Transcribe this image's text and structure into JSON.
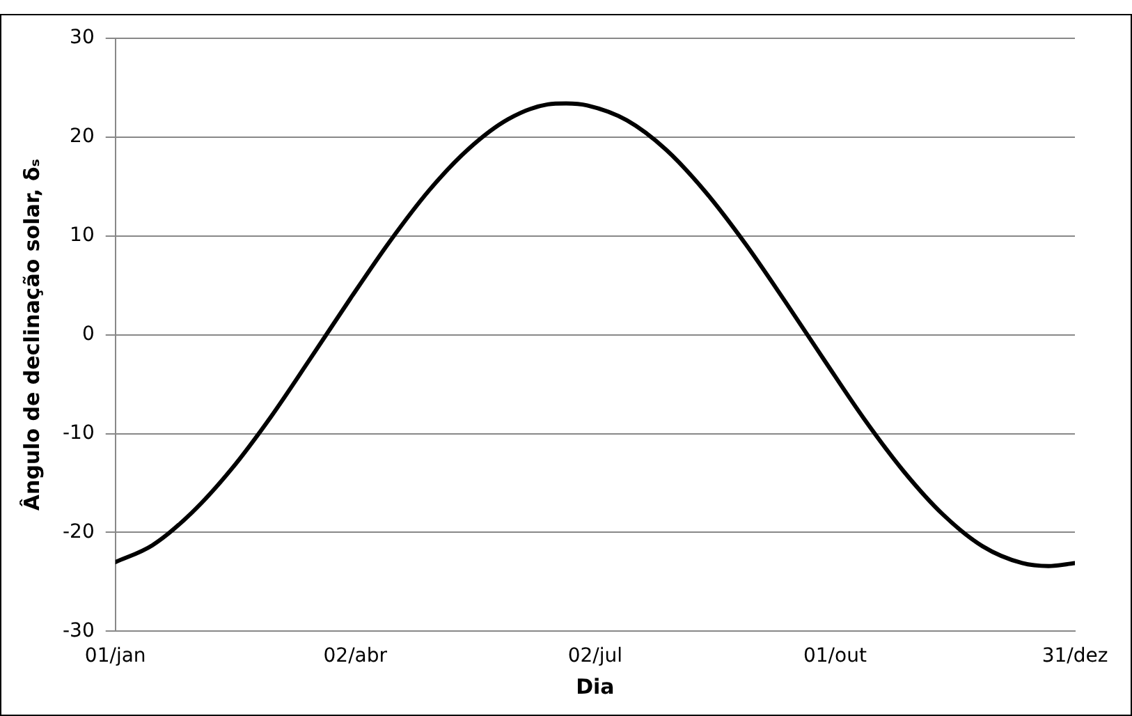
{
  "chart_data": {
    "type": "line",
    "xlabel": "Dia",
    "ylabel": "Ângulo de declinação solar, δₛ",
    "x": [
      "--01-01",
      "--01-15",
      "--01-30",
      "--02-14",
      "--03-01",
      "--03-16",
      "--03-31",
      "--04-15",
      "--04-30",
      "--05-15",
      "--05-30",
      "--06-14",
      "--06-21",
      "--06-29",
      "--07-14",
      "--07-29",
      "--08-13",
      "--08-28",
      "--09-12",
      "--09-27",
      "--10-12",
      "--10-27",
      "--11-11",
      "--11-26",
      "--12-11",
      "--12-21",
      "--12-31"
    ],
    "series": [
      {
        "color": "#000000",
        "values": [
          -23.0,
          -21.3,
          -18.0,
          -13.6,
          -8.3,
          -2.4,
          3.6,
          9.4,
          14.6,
          18.8,
          21.8,
          23.3,
          23.4,
          23.2,
          21.7,
          18.7,
          14.4,
          9.2,
          3.4,
          -2.6,
          -8.5,
          -13.8,
          -18.2,
          -21.4,
          -23.1,
          -23.4,
          -23.1
        ]
      }
    ],
    "xlim": [
      "--01-01",
      "--12-31"
    ],
    "xticks": [
      {
        "value": "--01-01",
        "label": "01/jan"
      },
      {
        "value": "--04-02",
        "label": "02/abr"
      },
      {
        "value": "--07-02",
        "label": "02/jul"
      },
      {
        "value": "--10-01",
        "label": "01/out"
      },
      {
        "value": "--12-31",
        "label": "31/dez"
      }
    ],
    "ylim": [
      -30,
      30
    ],
    "yticks": [
      -30,
      -20,
      -10,
      0,
      10,
      20,
      30
    ],
    "grid": "y",
    "legend": false,
    "marker": "none",
    "line_style": "solid"
  }
}
